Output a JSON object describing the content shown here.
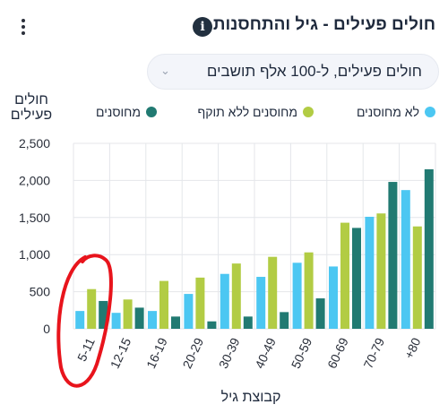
{
  "header": {
    "title": "חולים פעילים - גיל והתחסנות",
    "info_icon": "info-icon",
    "menu_icon": "kebab-menu-icon"
  },
  "dropdown": {
    "selected": "חולים פעילים, ל-100 אלף תושבים"
  },
  "colors": {
    "unvaccinated": "#4cc7f2",
    "expired": "#b2cc44",
    "vaccinated": "#217a72"
  },
  "chart_data": {
    "type": "bar",
    "ylabel": "חולים פעילים",
    "xlabel": "קבוצת גיל",
    "ylim": [
      0,
      2500
    ],
    "yticks": [
      "0",
      "500",
      "1,000",
      "1,500",
      "2,000",
      "2,500"
    ],
    "categories": [
      "5-11",
      "12-15",
      "16-19",
      "20-29",
      "30-39",
      "40-49",
      "50-59",
      "60-69",
      "70-79",
      "80+"
    ],
    "category_labels": [
      "5-11",
      "12-15",
      "16-19",
      "20-29",
      "30-39",
      "40-49",
      "50-59",
      "60-69",
      "70-79",
      "+80"
    ],
    "series": [
      {
        "name": "לא מחוסנים",
        "values": [
          240,
          215,
          240,
          470,
          740,
          700,
          890,
          840,
          1510,
          1870
        ]
      },
      {
        "name": "מחוסנים ללא תוקף",
        "values": [
          535,
          395,
          645,
          690,
          880,
          970,
          1030,
          1430,
          1555,
          1380
        ]
      },
      {
        "name": "מחוסנים",
        "values": [
          375,
          285,
          165,
          100,
          165,
          225,
          410,
          1360,
          1980,
          2150
        ]
      }
    ],
    "legend_position": "top"
  }
}
